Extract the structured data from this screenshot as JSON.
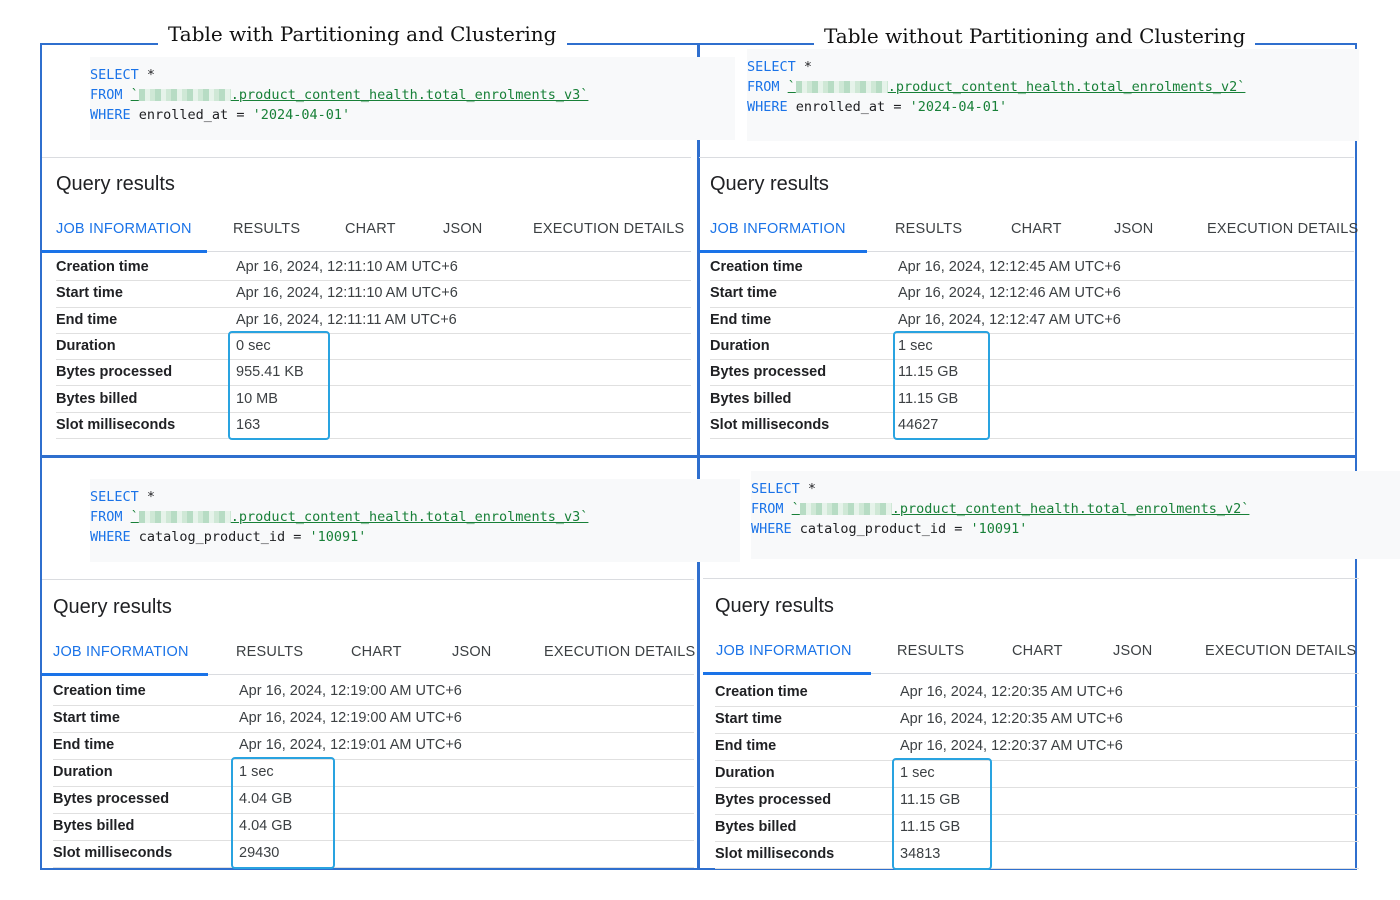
{
  "captions": {
    "left": "Table with Partitioning and Clustering",
    "right": "Table without Partitioning and Clustering"
  },
  "tabs": [
    "JOB INFORMATION",
    "RESULTS",
    "CHART",
    "JSON",
    "EXECUTION DETAILS"
  ],
  "labels": [
    "Creation time",
    "Start time",
    "End time",
    "Duration",
    "Bytes processed",
    "Bytes billed",
    "Slot milliseconds"
  ],
  "query_results_title": "Query results",
  "panels": [
    {
      "sql": {
        "select": "SELECT",
        "star": "*",
        "from": "FROM",
        "table": ".product_content_health.total_enrolments_v3`",
        "where": "WHERE",
        "column": "enrolled_at",
        "op": "=",
        "value": "'2024-04-01'"
      },
      "values": [
        "Apr 16, 2024, 12:11:10 AM UTC+6",
        "Apr 16, 2024, 12:11:10 AM UTC+6",
        "Apr 16, 2024, 12:11:11 AM UTC+6",
        "0 sec",
        "955.41 KB",
        "10 MB",
        "163"
      ]
    },
    {
      "sql": {
        "select": "SELECT",
        "star": "*",
        "from": "FROM",
        "table": ".product_content_health.total_enrolments_v2`",
        "where": "WHERE",
        "column": "enrolled_at",
        "op": "=",
        "value": "'2024-04-01'"
      },
      "values": [
        "Apr 16, 2024, 12:12:45 AM UTC+6",
        "Apr 16, 2024, 12:12:46 AM UTC+6",
        "Apr 16, 2024, 12:12:47 AM UTC+6",
        "1 sec",
        "11.15 GB",
        "11.15 GB",
        "44627"
      ]
    },
    {
      "sql": {
        "select": "SELECT",
        "star": "*",
        "from": "FROM",
        "table": ".product_content_health.total_enrolments_v3`",
        "where": "WHERE",
        "column": "catalog_product_id",
        "op": "=",
        "value": "'10091'"
      },
      "values": [
        "Apr 16, 2024, 12:19:00 AM UTC+6",
        "Apr 16, 2024, 12:19:00 AM UTC+6",
        "Apr 16, 2024, 12:19:01 AM UTC+6",
        "1 sec",
        "4.04 GB",
        "4.04 GB",
        "29430"
      ]
    },
    {
      "sql": {
        "select": "SELECT",
        "star": "*",
        "from": "FROM",
        "table": ".product_content_health.total_enrolments_v2`",
        "where": "WHERE",
        "column": "catalog_product_id",
        "op": "=",
        "value": "'10091'"
      },
      "values": [
        "Apr 16, 2024, 12:20:35 AM UTC+6",
        "Apr 16, 2024, 12:20:35 AM UTC+6",
        "Apr 16, 2024, 12:20:37 AM UTC+6",
        "1 sec",
        "11.15 GB",
        "11.15 GB",
        "34813"
      ]
    }
  ]
}
